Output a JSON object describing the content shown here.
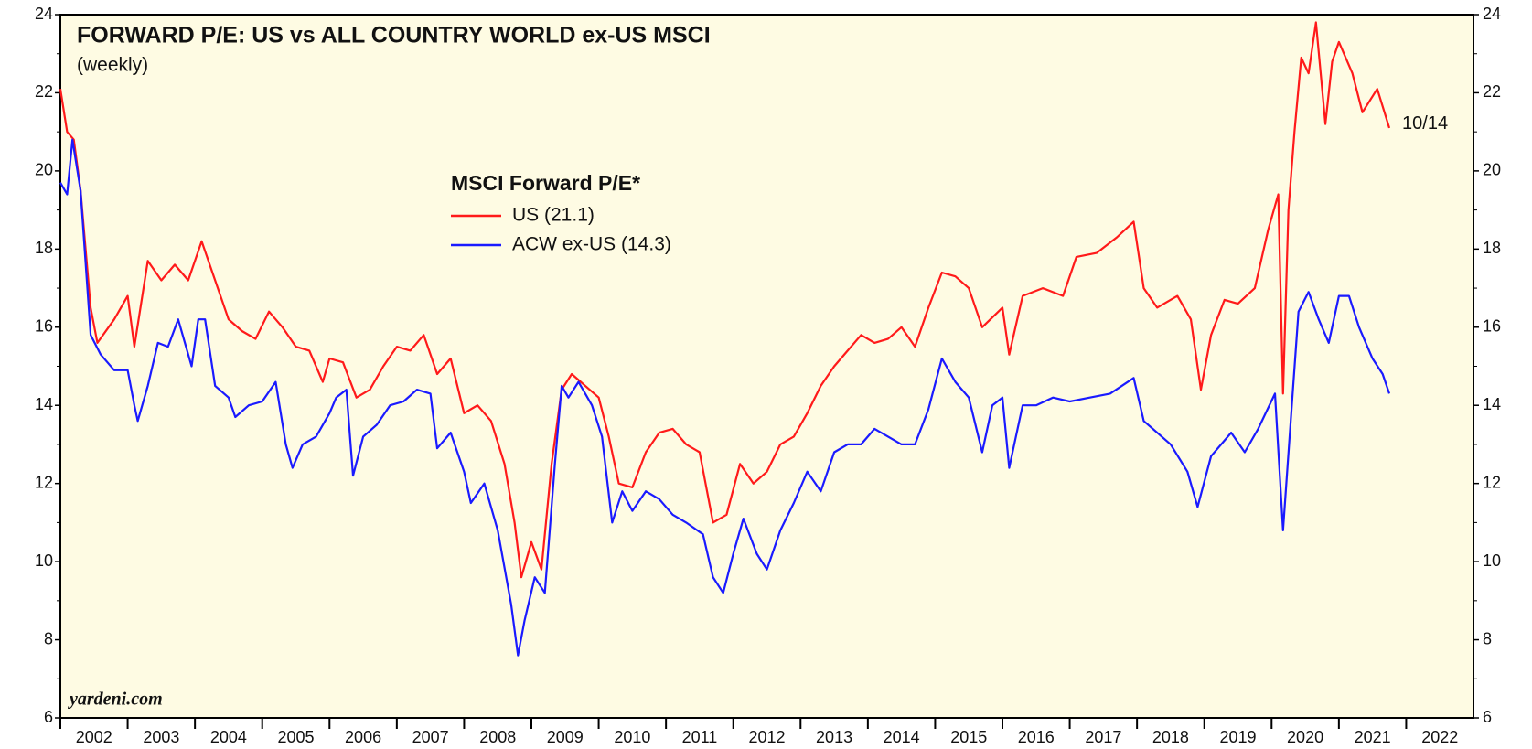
{
  "chart_data": {
    "type": "line",
    "title": "FORWARD P/E: US vs ALL COUNTRY WORLD ex-US MSCI",
    "subtitle": "(weekly)",
    "legend_title": "MSCI Forward P/E*",
    "source": "yardeni.com",
    "annotation": "10/14",
    "xlim": [
      2002,
      2023
    ],
    "xticks": [
      2002,
      2003,
      2004,
      2005,
      2006,
      2007,
      2008,
      2009,
      2010,
      2011,
      2012,
      2013,
      2014,
      2015,
      2016,
      2017,
      2018,
      2019,
      2020,
      2021,
      2022
    ],
    "ylim": [
      6,
      24
    ],
    "yticks": [
      6,
      8,
      10,
      12,
      14,
      16,
      18,
      20,
      22,
      24
    ],
    "right_axis": true,
    "background": "#fefbe3",
    "series": [
      {
        "name": "US (21.1)",
        "color": "#ff1a1a",
        "x": [
          2002.0,
          2002.1,
          2002.2,
          2002.3,
          2002.45,
          2002.55,
          2002.8,
          2003.0,
          2003.1,
          2003.3,
          2003.5,
          2003.7,
          2003.9,
          2004.1,
          2004.3,
          2004.5,
          2004.7,
          2004.9,
          2005.1,
          2005.3,
          2005.5,
          2005.7,
          2005.9,
          2006.0,
          2006.2,
          2006.4,
          2006.6,
          2006.8,
          2007.0,
          2007.2,
          2007.4,
          2007.6,
          2007.8,
          2008.0,
          2008.2,
          2008.4,
          2008.6,
          2008.75,
          2008.85,
          2009.0,
          2009.15,
          2009.3,
          2009.45,
          2009.6,
          2009.8,
          2010.0,
          2010.15,
          2010.3,
          2010.5,
          2010.7,
          2010.9,
          2011.1,
          2011.3,
          2011.5,
          2011.7,
          2011.9,
          2012.1,
          2012.3,
          2012.5,
          2012.7,
          2012.9,
          2013.1,
          2013.3,
          2013.5,
          2013.7,
          2013.9,
          2014.1,
          2014.3,
          2014.5,
          2014.7,
          2014.9,
          2015.1,
          2015.3,
          2015.5,
          2015.7,
          2016.0,
          2016.1,
          2016.3,
          2016.6,
          2016.9,
          2017.1,
          2017.4,
          2017.7,
          2017.95,
          2018.1,
          2018.3,
          2018.6,
          2018.8,
          2018.95,
          2019.1,
          2019.3,
          2019.5,
          2019.75,
          2019.95,
          2020.1,
          2020.17,
          2020.25,
          2020.34,
          2020.44,
          2020.55,
          2020.66,
          2020.8,
          2020.9,
          2021.0,
          2021.2,
          2021.35,
          2021.57,
          2021.75
        ],
        "values": [
          22.1,
          21.0,
          20.8,
          19.5,
          16.5,
          15.6,
          16.2,
          16.8,
          15.5,
          17.7,
          17.2,
          17.6,
          17.2,
          18.2,
          17.2,
          16.2,
          15.9,
          15.7,
          16.4,
          16.0,
          15.5,
          15.4,
          14.6,
          15.2,
          15.1,
          14.2,
          14.4,
          15.0,
          15.5,
          15.4,
          15.8,
          14.8,
          15.2,
          13.8,
          14.0,
          13.6,
          12.5,
          11.0,
          9.6,
          10.5,
          9.8,
          12.5,
          14.4,
          14.8,
          14.5,
          14.2,
          13.2,
          12.0,
          11.9,
          12.8,
          13.3,
          13.4,
          13.0,
          12.8,
          11.0,
          11.2,
          12.5,
          12.0,
          12.3,
          13.0,
          13.2,
          13.8,
          14.5,
          15.0,
          15.4,
          15.8,
          15.6,
          15.7,
          16.0,
          15.5,
          16.5,
          17.4,
          17.3,
          17.0,
          16.0,
          16.5,
          15.3,
          16.8,
          17.0,
          16.8,
          17.8,
          17.9,
          18.3,
          18.7,
          17.0,
          16.5,
          16.8,
          16.2,
          14.4,
          15.8,
          16.7,
          16.6,
          17.0,
          18.5,
          19.4,
          14.3,
          19.0,
          21.0,
          22.9,
          22.5,
          23.8,
          21.2,
          22.8,
          23.3,
          22.5,
          21.5,
          22.1,
          21.1
        ]
      },
      {
        "name": "ACW ex-US (14.3)",
        "color": "#1a1aff",
        "x": [
          2002.0,
          2002.1,
          2002.18,
          2002.3,
          2002.45,
          2002.6,
          2002.8,
          2003.0,
          2003.1,
          2003.15,
          2003.3,
          2003.45,
          2003.6,
          2003.75,
          2003.95,
          2004.05,
          2004.15,
          2004.3,
          2004.5,
          2004.6,
          2004.8,
          2005.0,
          2005.2,
          2005.35,
          2005.45,
          2005.6,
          2005.8,
          2006.0,
          2006.1,
          2006.25,
          2006.35,
          2006.5,
          2006.7,
          2006.9,
          2007.1,
          2007.3,
          2007.5,
          2007.6,
          2007.8,
          2008.0,
          2008.1,
          2008.3,
          2008.5,
          2008.7,
          2008.8,
          2008.9,
          2009.05,
          2009.2,
          2009.35,
          2009.45,
          2009.55,
          2009.7,
          2009.9,
          2010.05,
          2010.2,
          2010.35,
          2010.5,
          2010.7,
          2010.9,
          2011.1,
          2011.3,
          2011.55,
          2011.7,
          2011.85,
          2012.0,
          2012.15,
          2012.35,
          2012.5,
          2012.7,
          2012.9,
          2013.1,
          2013.3,
          2013.5,
          2013.7,
          2013.9,
          2014.1,
          2014.3,
          2014.5,
          2014.7,
          2014.9,
          2015.1,
          2015.3,
          2015.5,
          2015.7,
          2015.85,
          2016.0,
          2016.1,
          2016.3,
          2016.5,
          2016.75,
          2017.0,
          2017.3,
          2017.6,
          2017.95,
          2018.1,
          2018.3,
          2018.5,
          2018.75,
          2018.9,
          2019.1,
          2019.4,
          2019.6,
          2019.8,
          2020.05,
          2020.17,
          2020.3,
          2020.4,
          2020.55,
          2020.7,
          2020.85,
          2021.0,
          2021.15,
          2021.3,
          2021.5,
          2021.65,
          2021.75
        ],
        "values": [
          19.7,
          19.4,
          20.8,
          19.5,
          15.8,
          15.3,
          14.9,
          14.9,
          14.0,
          13.6,
          14.5,
          15.6,
          15.5,
          16.2,
          15.0,
          16.2,
          16.2,
          14.5,
          14.2,
          13.7,
          14.0,
          14.1,
          14.6,
          13.0,
          12.4,
          13.0,
          13.2,
          13.8,
          14.2,
          14.4,
          12.2,
          13.2,
          13.5,
          14.0,
          14.1,
          14.4,
          14.3,
          12.9,
          13.3,
          12.3,
          11.5,
          12.0,
          10.8,
          8.9,
          7.6,
          8.5,
          9.6,
          9.2,
          12.5,
          14.5,
          14.2,
          14.6,
          14.0,
          13.2,
          11.0,
          11.8,
          11.3,
          11.8,
          11.6,
          11.2,
          11.0,
          10.7,
          9.6,
          9.2,
          10.2,
          11.1,
          10.2,
          9.8,
          10.8,
          11.5,
          12.3,
          11.8,
          12.8,
          13.0,
          13.0,
          13.4,
          13.2,
          13.0,
          13.0,
          13.9,
          15.2,
          14.6,
          14.2,
          12.8,
          14.0,
          14.2,
          12.4,
          14.0,
          14.0,
          14.2,
          14.1,
          14.2,
          14.3,
          14.7,
          13.6,
          13.3,
          13.0,
          12.3,
          11.4,
          12.7,
          13.3,
          12.8,
          13.4,
          14.3,
          10.8,
          14.0,
          16.4,
          16.9,
          16.2,
          15.6,
          16.8,
          16.8,
          16.0,
          15.2,
          14.8,
          14.3
        ]
      }
    ]
  }
}
